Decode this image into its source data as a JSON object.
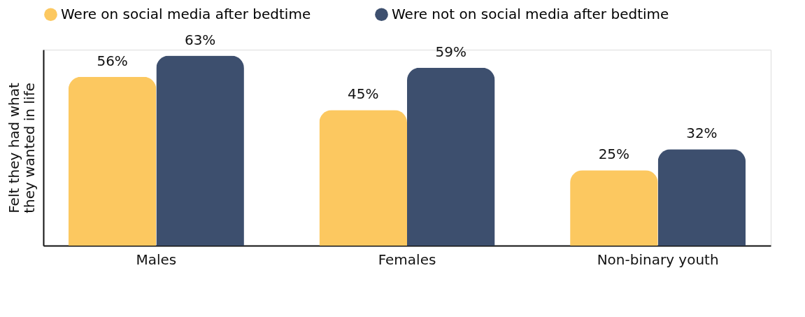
{
  "chart_data": {
    "type": "bar",
    "ylabel": "Felt they had what they wanted in life",
    "categories": [
      "Males",
      "Females",
      "Non-binary youth"
    ],
    "series": [
      {
        "name": "Were on social media after bedtime",
        "color": "#fcc860",
        "values": [
          56,
          45,
          25
        ],
        "value_labels": [
          "56%",
          "45%",
          "25%"
        ]
      },
      {
        "name": "Were not on social media after bedtime",
        "color": "#3d4f6e",
        "values": [
          63,
          59,
          32
        ],
        "value_labels": [
          "63%",
          "59%",
          "32%"
        ]
      }
    ],
    "legend": "top left",
    "grid": false
  }
}
